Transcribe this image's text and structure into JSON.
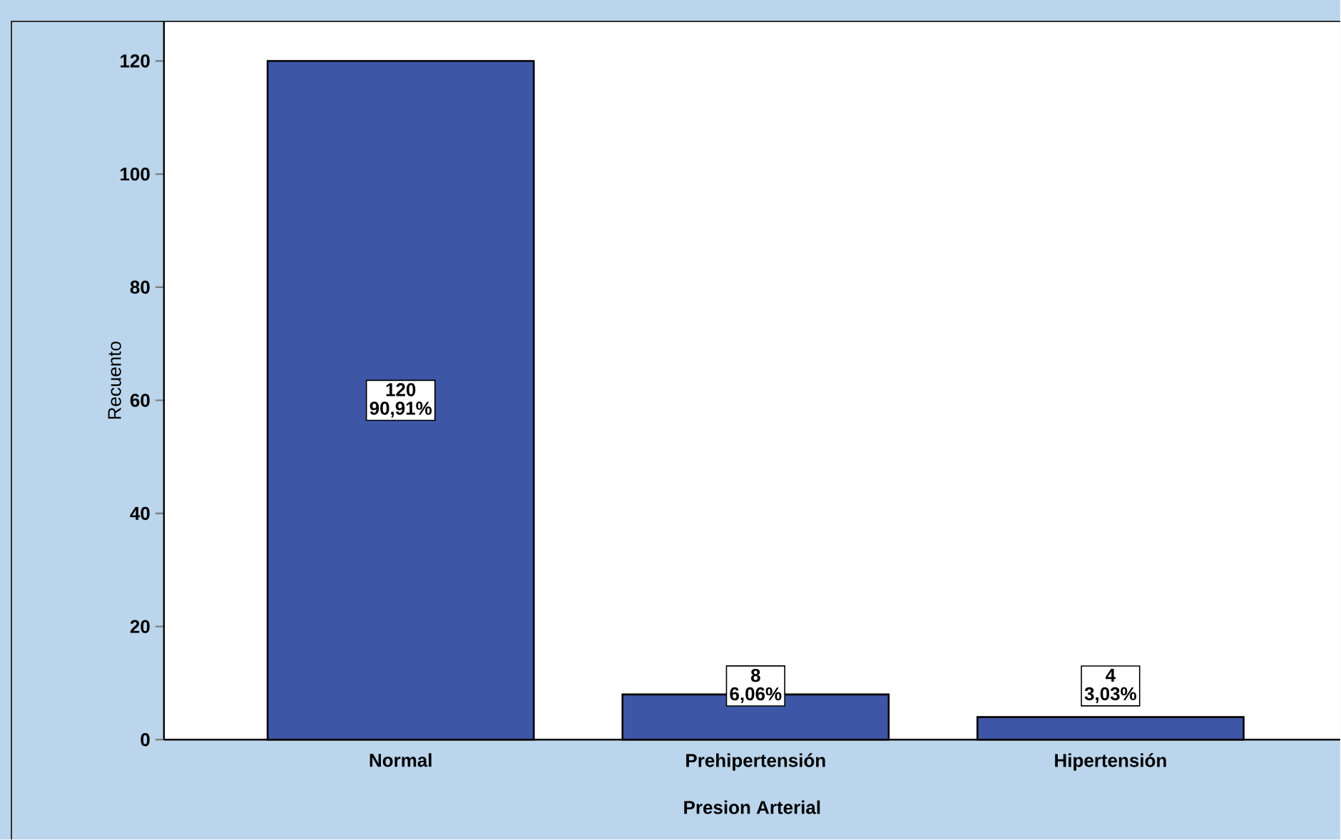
{
  "chart_data": {
    "type": "bar",
    "xlabel": "Presion Arterial",
    "ylabel": "Recuento",
    "categories": [
      "Normal",
      "Prehipertensión",
      "Hipertensión"
    ],
    "values": [
      120,
      8,
      4
    ],
    "color": "#3e56a6",
    "ylim": [
      0,
      127
    ],
    "yticks": [
      0,
      20,
      40,
      60,
      80,
      100,
      120
    ],
    "data_labels": true,
    "annotations": [
      "90,91%",
      "6,06%",
      "3,03%"
    ]
  }
}
